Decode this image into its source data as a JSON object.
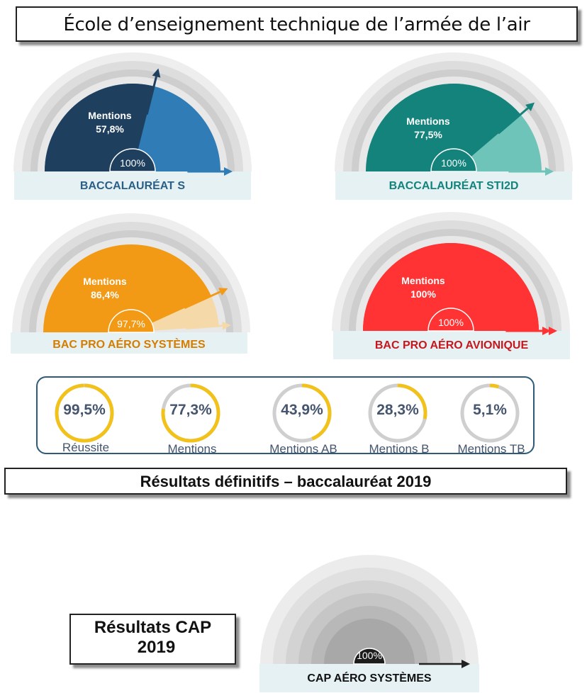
{
  "header": {
    "title": "École d’enseignement technique de l’armée de l’air"
  },
  "results_banner": {
    "title": "Résultats définitifs – baccalauréat 2019"
  },
  "cap_banner": {
    "line1": "Résultats CAP",
    "line2": "2019"
  },
  "colors": {
    "bac_s": "#1f3f5f",
    "bac_s_light": "#2f7cb6",
    "sti2d": "#13837c",
    "sti2d_light": "#6fc4ba",
    "aero_systemes": "#f29a16",
    "aero_systemes_light": "#f6d9a8",
    "aero_avionique": "#ff3333",
    "cap": "#222222",
    "ring_yellow": "#f2c21b",
    "ring_grey": "#cfcfcf",
    "stat_text": "#45556e"
  },
  "chart_data": [
    {
      "type": "gauge",
      "label": "BACCALAURÉAT S",
      "mentions_label": "Mentions",
      "mentions_value": "57,8%",
      "mentions_fraction": 0.578,
      "success_label": "100%",
      "success_fraction": 1.0
    },
    {
      "type": "gauge",
      "label": "BACCALAURÉAT STI2D",
      "mentions_label": "Mentions",
      "mentions_value": "77,5%",
      "mentions_fraction": 0.775,
      "success_label": "100%",
      "success_fraction": 1.0
    },
    {
      "type": "gauge",
      "label": "BAC PRO AÉRO SYSTÈMES",
      "mentions_label": "Mentions",
      "mentions_value": "86,4%",
      "mentions_fraction": 0.864,
      "success_label": "97,7%",
      "success_fraction": 0.977
    },
    {
      "type": "gauge",
      "label": "BAC PRO AÉRO AVIONIQUE",
      "mentions_label": "Mentions",
      "mentions_value": "100%",
      "mentions_fraction": 1.0,
      "success_label": "100%",
      "success_fraction": 1.0
    },
    {
      "type": "gauge",
      "label": "CAP AÉRO SYSTÈMES",
      "success_label": "100%",
      "success_fraction": 1.0
    },
    {
      "type": "donut-stats",
      "items": [
        {
          "value": "99,5%",
          "label": "Réussite",
          "fraction": 0.995
        },
        {
          "value": "77,3%",
          "label": "Mentions",
          "fraction": 0.773
        },
        {
          "value": "43,9%",
          "label": "Mentions AB",
          "fraction": 0.439
        },
        {
          "value": "28,3%",
          "label": "Mentions B",
          "fraction": 0.283
        },
        {
          "value": "5,1%",
          "label": "Mentions TB",
          "fraction": 0.051
        }
      ]
    }
  ]
}
